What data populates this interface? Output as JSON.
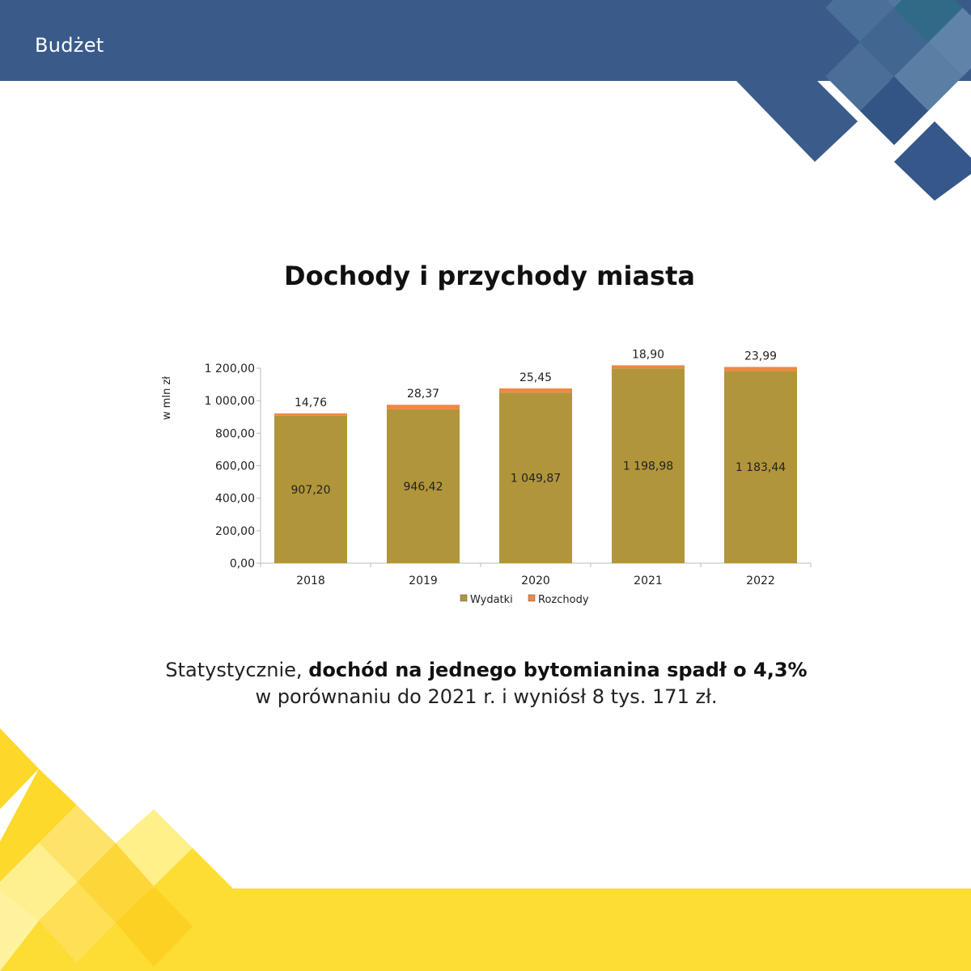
{
  "header": {
    "title": "Budżet"
  },
  "colors": {
    "header_blue": "#3a5b8a",
    "footer_yellow": "#fddc33",
    "bar_wydatki": "#b1953a",
    "bar_rozchody": "#f08844"
  },
  "chart_data": {
    "type": "bar",
    "stacked": true,
    "title": "Dochody i przychody miasta",
    "ylabel": "w mln zł",
    "xlabel": "",
    "categories": [
      "2018",
      "2019",
      "2020",
      "2021",
      "2022"
    ],
    "series": [
      {
        "name": "Wydatki",
        "values": [
          907.2,
          946.42,
          1049.87,
          1198.98,
          1183.44
        ],
        "labels": [
          "907,20",
          "946,42",
          "1 049,87",
          "1 198,98",
          "1 183,44"
        ],
        "color": "#b1953a"
      },
      {
        "name": "Rozchody",
        "values": [
          14.76,
          28.37,
          25.45,
          18.9,
          23.99
        ],
        "labels": [
          "14,76",
          "28,37",
          "25,45",
          "18,90",
          "23,99"
        ],
        "color": "#f08844"
      }
    ],
    "ylim": [
      0,
      1200
    ],
    "yticks": [
      0,
      200,
      400,
      600,
      800,
      1000,
      1200
    ],
    "ytick_labels": [
      "0,00",
      "200,00",
      "400,00",
      "600,00",
      "800,00",
      "1 000,00",
      "1 200,00"
    ],
    "grid": false,
    "legend": "bottom"
  },
  "caption": {
    "prefix": "Statystycznie, ",
    "bold": "dochód na jednego bytomianina spadł o 4,3%",
    "line2": "w porównaniu do 2021 r. i wyniósł 8 tys. 171 zł."
  }
}
